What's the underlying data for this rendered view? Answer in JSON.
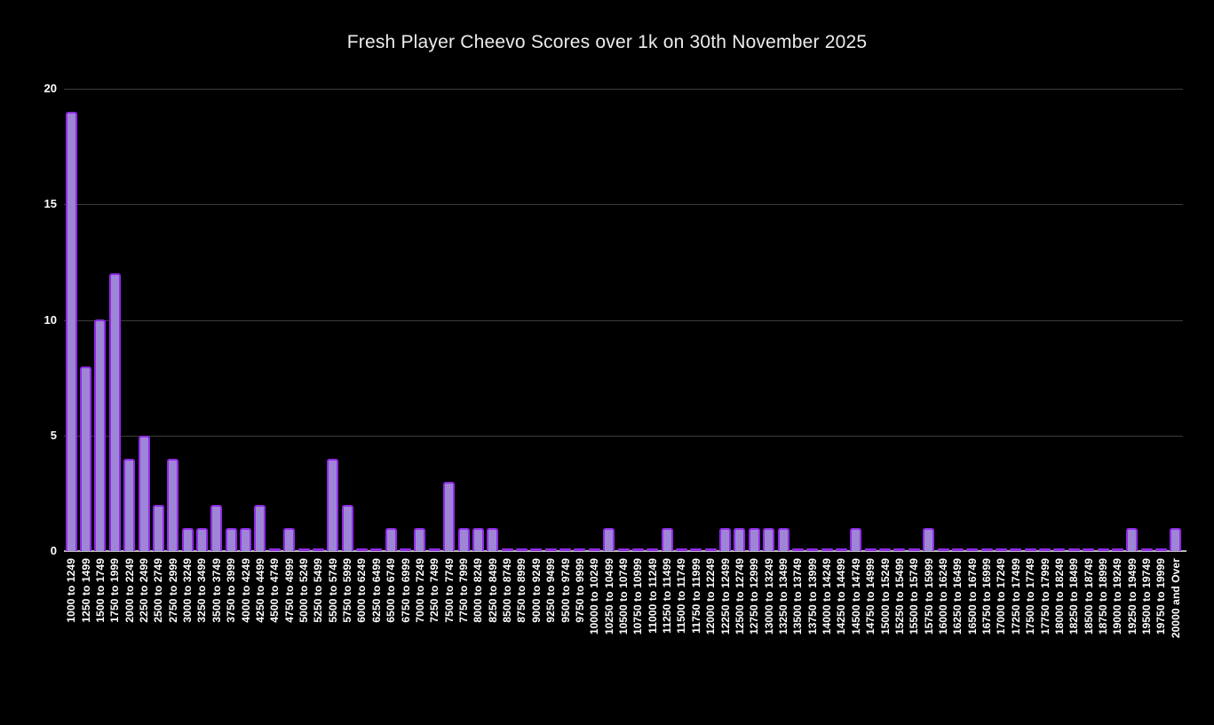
{
  "chart_data": {
    "type": "bar",
    "title": "Fresh Player Cheevo Scores over 1k on 30th November 2025",
    "xlabel": "",
    "ylabel": "",
    "ylim": [
      0,
      20
    ],
    "yticks": [
      0,
      5,
      10,
      15,
      20
    ],
    "grid": "horizontal",
    "legend": "none",
    "categories": [
      "1000 to 1249",
      "1250 to 1499",
      "1500 to 1749",
      "1750 to 1999",
      "2000 to 2249",
      "2250 to 2499",
      "2500 to 2749",
      "2750 to 2999",
      "3000 to 3249",
      "3250 to 3499",
      "3500 to 3749",
      "3750 to 3999",
      "4000 to 4249",
      "4250 to 4499",
      "4500 to 4749",
      "4750 to 4999",
      "5000 to 5249",
      "5250 to 5499",
      "5500 to 5749",
      "5750 to 5999",
      "6000 to 6249",
      "6250 to 6499",
      "6500 to 6749",
      "6750 to 6999",
      "7000 to 7249",
      "7250 to 7499",
      "7500 to 7749",
      "7750 to 7999",
      "8000 to 8249",
      "8250 to 8499",
      "8500 to 8749",
      "8750 to 8999",
      "9000 to 9249",
      "9250 to 9499",
      "9500 to 9749",
      "9750 to 9999",
      "10000 to 10249",
      "10250 to 10499",
      "10500 to 10749",
      "10750 to 10999",
      "11000 to 11249",
      "11250 to 11499",
      "11500 to 11749",
      "11750 to 11999",
      "12000 to 12249",
      "12250 to 12499",
      "12500 to 12749",
      "12750 to 12999",
      "13000 to 13249",
      "13250 to 13499",
      "13500 to 13749",
      "13750 to 13999",
      "14000 to 14249",
      "14250 to 14499",
      "14500 to 14749",
      "14750 to 14999",
      "15000 to 15249",
      "15250 to 15499",
      "15500 to 15749",
      "15750 to 15999",
      "16000 to 16249",
      "16250 to 16499",
      "16500 to 16749",
      "16750 to 16999",
      "17000 to 17249",
      "17250 to 17499",
      "17500 to 17749",
      "17750 to 17999",
      "18000 to 18249",
      "18250 to 18499",
      "18500 to 18749",
      "18750 to 18999",
      "19000 to 19249",
      "19250 to 19499",
      "19500 to 19749",
      "19750 to 19999",
      "20000 and Over"
    ],
    "values": [
      19,
      8,
      10,
      12,
      4,
      5,
      2,
      4,
      1,
      1,
      2,
      1,
      1,
      2,
      0,
      1,
      0,
      0,
      4,
      2,
      0,
      0,
      1,
      0,
      1,
      0,
      3,
      1,
      1,
      1,
      0,
      0,
      0,
      0,
      0,
      0,
      0,
      1,
      0,
      0,
      0,
      1,
      0,
      0,
      0,
      1,
      1,
      1,
      1,
      1,
      0,
      0,
      0,
      0,
      1,
      0,
      0,
      0,
      0,
      1,
      0,
      0,
      0,
      0,
      0,
      0,
      0,
      0,
      0,
      0,
      0,
      0,
      0,
      1,
      0,
      0,
      1
    ],
    "colors": {
      "background": "#000000",
      "bar_fill": "#9e85d5",
      "bar_stroke": "#8f2be5",
      "gridline": "#3c3c3c",
      "axis_line": "#b8b8b8",
      "tick_text": "#ffffff",
      "title_text": "#ececec"
    }
  }
}
